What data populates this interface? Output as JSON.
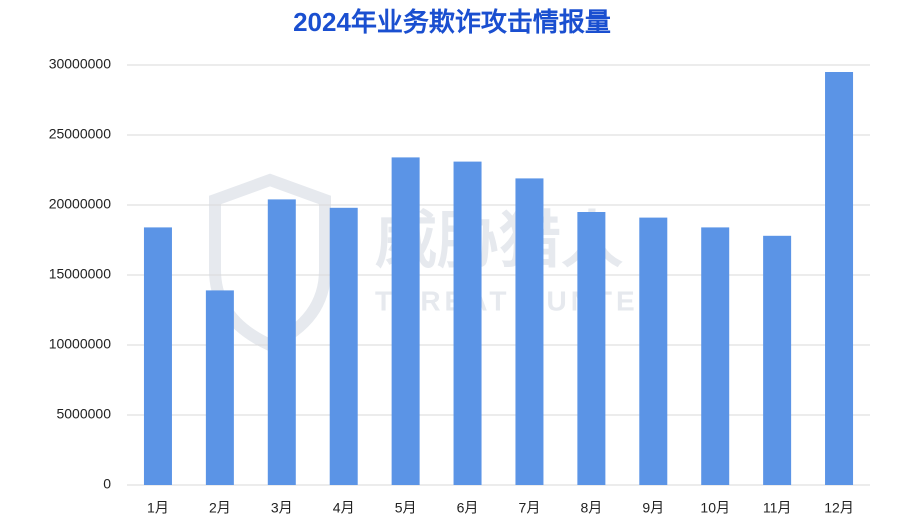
{
  "chart_data": {
    "type": "bar",
    "title": "2024年业务欺诈攻击情报量",
    "categories": [
      "1月",
      "2月",
      "3月",
      "4月",
      "5月",
      "6月",
      "7月",
      "8月",
      "9月",
      "10月",
      "11月",
      "12月"
    ],
    "values": [
      18400000,
      13900000,
      20400000,
      19800000,
      23400000,
      23100000,
      21900000,
      19500000,
      19100000,
      18400000,
      17800000,
      29500000
    ],
    "color": "#5b94e6",
    "ylim": [
      0,
      30000000
    ],
    "yticks": [
      0,
      5000000,
      10000000,
      15000000,
      20000000,
      25000000,
      30000000
    ],
    "grid": true,
    "watermark": {
      "name": "威胁猎人",
      "subtitle": "THREAT HUNTER"
    }
  }
}
